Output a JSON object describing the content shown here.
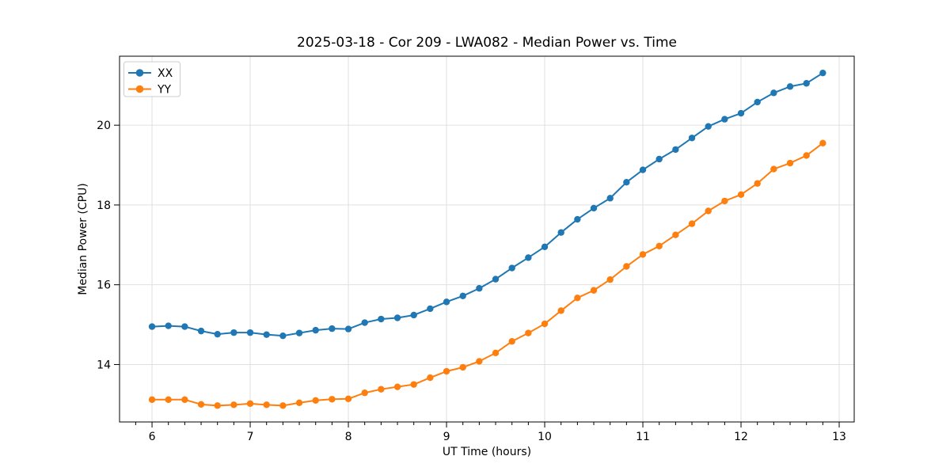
{
  "figure": {
    "kind": "matplotlib-line-plot",
    "background": "#ffffff"
  },
  "colors": {
    "series_xx": "#1f77b4",
    "series_yy": "#ff7f0e",
    "grid": "#e0e0e0",
    "spine": "#000000",
    "text": "#000000"
  },
  "chart_data": {
    "type": "line",
    "title": "2025-03-18 - Cor 209 - LWA082 - Median Power vs. Time",
    "xlabel": "UT Time (hours)",
    "ylabel": "Median Power (CPU)",
    "grid": true,
    "legend_position": "upper left",
    "marker": "o",
    "xlim": [
      5.669,
      13.153
    ],
    "ylim": [
      12.56,
      21.73
    ],
    "x_major_ticks": [
      6,
      7,
      8,
      9,
      10,
      11,
      12,
      13
    ],
    "x_minor_step": 0.16667,
    "y_major_ticks": [
      14,
      16,
      18,
      20
    ],
    "x": [
      6.0,
      6.1667,
      6.3333,
      6.5,
      6.6667,
      6.8333,
      7.0,
      7.1667,
      7.3333,
      7.5,
      7.6667,
      7.8333,
      8.0,
      8.1667,
      8.3333,
      8.5,
      8.6667,
      8.8333,
      9.0,
      9.1667,
      9.3333,
      9.5,
      9.6667,
      9.8333,
      10.0,
      10.1667,
      10.3333,
      10.5,
      10.6667,
      10.8333,
      11.0,
      11.1667,
      11.3333,
      11.5,
      11.6667,
      11.8333,
      12.0,
      12.1667,
      12.3333,
      12.5,
      12.6667,
      12.8333
    ],
    "series": [
      {
        "name": "XX",
        "color": "#1f77b4",
        "values": [
          14.95,
          14.97,
          14.95,
          14.84,
          14.76,
          14.8,
          14.8,
          14.75,
          14.72,
          14.79,
          14.86,
          14.9,
          14.89,
          15.05,
          15.14,
          15.17,
          15.24,
          15.4,
          15.57,
          15.72,
          15.91,
          16.14,
          16.42,
          16.68,
          16.95,
          17.31,
          17.64,
          17.92,
          18.17,
          18.57,
          18.88,
          19.15,
          19.39,
          19.68,
          19.97,
          20.15,
          20.3,
          20.58,
          20.81,
          20.97,
          21.05,
          21.31
        ]
      },
      {
        "name": "YY",
        "color": "#ff7f0e",
        "values": [
          13.12,
          13.12,
          13.12,
          13.0,
          12.97,
          12.99,
          13.02,
          12.99,
          12.97,
          13.04,
          13.1,
          13.13,
          13.14,
          13.29,
          13.38,
          13.44,
          13.5,
          13.67,
          13.83,
          13.93,
          14.08,
          14.29,
          14.58,
          14.79,
          15.02,
          15.35,
          15.67,
          15.86,
          16.13,
          16.46,
          16.76,
          16.97,
          17.25,
          17.53,
          17.85,
          18.1,
          18.26,
          18.54,
          18.9,
          19.05,
          19.24,
          19.55
        ]
      }
    ]
  },
  "legend": {
    "entries": [
      {
        "label": "XX",
        "color": "#1f77b4"
      },
      {
        "label": "YY",
        "color": "#ff7f0e"
      }
    ]
  }
}
